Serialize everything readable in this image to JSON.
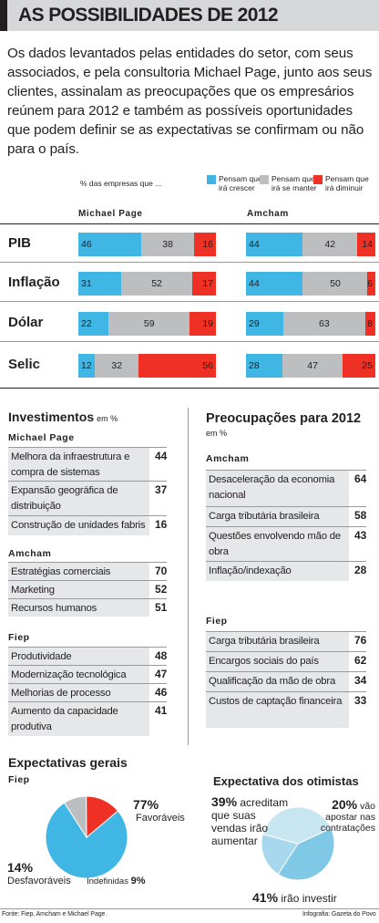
{
  "header": {
    "title": "AS POSSIBILIDADES DE 2012",
    "intro": "Os dados levantados pelas entidades do setor, com seus associados, e pela consultoria Michael Page, junto aos seus clientes, assinalam as preocupações que os empresários reúnem para 2012 e também as possíveis oportunidades que podem definir se as expectativas se confirmam ou não para o país."
  },
  "legend": {
    "lead": "% das empresas que ...",
    "items": [
      {
        "label": "Pensam que irá crescer",
        "color": "#3fb6e3"
      },
      {
        "label": "Pensam que irá se manter",
        "color": "#bcbec0"
      },
      {
        "label": "Pensam que irá diminuir",
        "color": "#ee3124"
      }
    ]
  },
  "chart_data": [
    {
      "type": "bar",
      "orientation": "horizontal-stacked",
      "groups": [
        "Michael Page",
        "Amcham"
      ],
      "categories": [
        "PIB",
        "Inflação",
        "Dólar",
        "Selic"
      ],
      "series": [
        {
          "name": "Pensam que irá crescer",
          "michael_page": [
            46,
            31,
            22,
            12
          ],
          "amcham": [
            44,
            44,
            29,
            28
          ]
        },
        {
          "name": "Pensam que irá se manter",
          "michael_page": [
            38,
            52,
            59,
            32
          ],
          "amcham": [
            42,
            50,
            63,
            47
          ]
        },
        {
          "name": "Pensam que irá diminuir",
          "michael_page": [
            16,
            17,
            19,
            56
          ],
          "amcham": [
            14,
            6,
            8,
            25
          ]
        }
      ]
    },
    {
      "type": "pie",
      "title": "Expectativas gerais",
      "subtitle": "Fiep",
      "slices": [
        {
          "name": "Favoráveis",
          "value": 77,
          "color": "#3fb6e3",
          "label": "77%"
        },
        {
          "name": "Indefinidas",
          "value": 9,
          "color": "#bcbec0",
          "label": "9%"
        },
        {
          "name": "Desfavoráveis",
          "value": 14,
          "color": "#ee3124",
          "label": "14%"
        }
      ]
    },
    {
      "type": "pie",
      "title": "Expectativa dos otimistas",
      "slices": [
        {
          "name": "acreditam que suas vendas irão aumentar",
          "value": 39,
          "color": "#c8e5f2",
          "label": "39%"
        },
        {
          "name": "irão investir",
          "value": 41,
          "color": "#7fc8e6",
          "label": "41%"
        },
        {
          "name": "vão apostar nas contratações",
          "value": 20,
          "color": "#a8d8ee",
          "label": "20%"
        }
      ]
    }
  ],
  "investimentos": {
    "title": "Investimentos",
    "unit": "em %",
    "groups": [
      {
        "name": "Michael Page",
        "rows": [
          {
            "label": "Melhora da infraestrutura e compra de sistemas",
            "value": "44"
          },
          {
            "label": "Expansão geográfica de distribuição",
            "value": "37"
          },
          {
            "label": "Construção de unidades fabris",
            "value": "16"
          }
        ]
      },
      {
        "name": "Amcham",
        "rows": [
          {
            "label": "Estratégias comerciais",
            "value": "70"
          },
          {
            "label": "Marketing",
            "value": "52"
          },
          {
            "label": "Recursos humanos",
            "value": "51"
          }
        ]
      },
      {
        "name": "Fiep",
        "rows": [
          {
            "label": "Produtividade",
            "value": "48"
          },
          {
            "label": "Modernização tecnológica",
            "value": "47"
          },
          {
            "label": "Melhorias de processo",
            "value": "46"
          },
          {
            "label": "Aumento da capacidade produtiva",
            "value": "41"
          }
        ]
      }
    ]
  },
  "preocupacoes": {
    "title": "Preocupações para 2012",
    "unit": "em %",
    "groups": [
      {
        "name": "Amcham",
        "rows": [
          {
            "label": "Desaceleração da economia nacional",
            "value": "64"
          },
          {
            "label": "Carga tributária brasileira",
            "value": "58"
          },
          {
            "label": "Questões envolvendo mão de obra",
            "value": "43"
          },
          {
            "label": "Inflação/indexação",
            "value": "28"
          }
        ]
      },
      {
        "name": "Fiep",
        "rows": [
          {
            "label": "Carga tributária brasileira",
            "value": "76"
          },
          {
            "label": "Encargos sociais do país",
            "value": "62"
          },
          {
            "label": "Qualificação da mão de obra",
            "value": "34"
          },
          {
            "label": "Custos de captação financeira",
            "value": "33"
          }
        ]
      }
    ]
  },
  "pie_labels": {
    "fav_pct": "77%",
    "fav_name": "Favoráveis",
    "des_pct": "14%",
    "des_name": "Desfavoráveis",
    "ind_name": "Indefinidas",
    "ind_pct": "9%",
    "p39": "39%",
    "p39_text1": "acreditam",
    "p39_text2": "que suas",
    "p39_text3": "vendas irão",
    "p39_text4": "aumentar",
    "p20": "20%",
    "p20_text1": "vão",
    "p20_text2": "apostar nas",
    "p20_text3": "contratações",
    "p41": "41%",
    "p41_text": "irão investir"
  },
  "footer": {
    "source": "Fonte: Fiep, Amcham e Michael Page.",
    "credit": "Infografia: Gazeta do Povo"
  }
}
